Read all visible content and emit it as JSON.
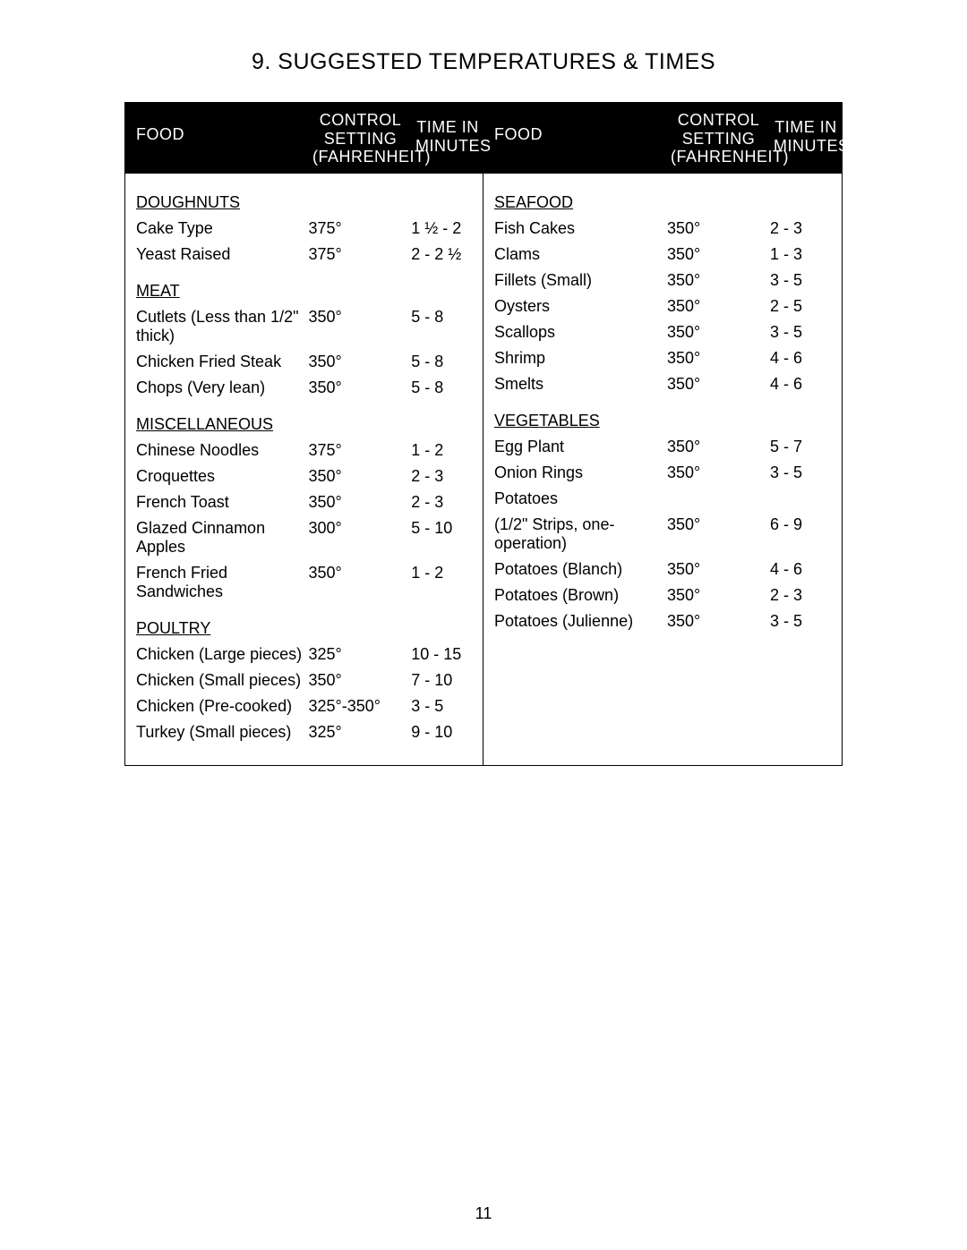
{
  "title": "9. SUGGESTED TEMPERATURES & TIMES",
  "page_number": "11",
  "headers": {
    "food": "FOOD",
    "temp_l1": "CONTROL",
    "temp_l2": "SETTING",
    "temp_l3": "(FAHRENHEIT)",
    "time_l1": "TIME IN",
    "time_l2": "MINUTES"
  },
  "left": [
    {
      "heading": "DOUGHNUTS",
      "rows": [
        {
          "food": "Cake Type",
          "temp": "375°",
          "time": "1 ½ - 2"
        },
        {
          "food": "Yeast Raised",
          "temp": "375°",
          "time": "2 - 2 ½"
        }
      ]
    },
    {
      "heading": "MEAT",
      "rows": [
        {
          "food": "Cutlets (Less than 1/2\" thick)",
          "temp": "350°",
          "time": "5 - 8"
        },
        {
          "food": "Chicken Fried Steak",
          "temp": "350°",
          "time": "5 - 8"
        },
        {
          "food": "Chops (Very lean)",
          "temp": "350°",
          "time": "5 - 8"
        }
      ]
    },
    {
      "heading": "MISCELLANEOUS",
      "rows": [
        {
          "food": "Chinese Noodles",
          "temp": "375°",
          "time": "1 - 2"
        },
        {
          "food": "Croquettes",
          "temp": "350°",
          "time": "2 - 3"
        },
        {
          "food": "French Toast",
          "temp": "350°",
          "time": "2 - 3"
        },
        {
          "food": "Glazed Cinnamon Apples",
          "temp": "300°",
          "time": "5 - 10"
        },
        {
          "food": "French Fried Sandwiches",
          "temp": "350°",
          "time": "1 - 2"
        }
      ]
    },
    {
      "heading": "POULTRY",
      "rows": [
        {
          "food": "Chicken (Large pieces)",
          "temp": "325°",
          "time": "10 - 15"
        },
        {
          "food": "Chicken (Small pieces)",
          "temp": "350°",
          "time": "7 - 10"
        },
        {
          "food": "Chicken (Pre-cooked)",
          "temp": "325°-350°",
          "time": "3 - 5"
        },
        {
          "food": "Turkey (Small pieces)",
          "temp": "325°",
          "time": "9 - 10"
        }
      ]
    }
  ],
  "right": [
    {
      "heading": "SEAFOOD",
      "rows": [
        {
          "food": "Fish Cakes",
          "temp": "350°",
          "time": "2 - 3"
        },
        {
          "food": "Clams",
          "temp": "350°",
          "time": "1 - 3"
        },
        {
          "food": "Fillets (Small)",
          "temp": "350°",
          "time": "3 - 5"
        },
        {
          "food": "Oysters",
          "temp": "350°",
          "time": "2 - 5"
        },
        {
          "food": "Scallops",
          "temp": "350°",
          "time": "3 - 5"
        },
        {
          "food": "Shrimp",
          "temp": "350°",
          "time": "4 - 6"
        },
        {
          "food": "Smelts",
          "temp": "350°",
          "time": "4 - 6"
        }
      ]
    },
    {
      "heading": "VEGETABLES",
      "rows": [
        {
          "food": "Egg Plant",
          "temp": "350°",
          "time": "5 - 7"
        },
        {
          "food": "Onion Rings",
          "temp": "350°",
          "time": "3 - 5"
        },
        {
          "food": "Potatoes",
          "temp": "",
          "time": ""
        },
        {
          "food": "(1/2\" Strips, one-operation)",
          "temp": "350°",
          "time": "6 - 9"
        },
        {
          "food": "Potatoes (Blanch)",
          "temp": "350°",
          "time": "4 - 6"
        },
        {
          "food": "Potatoes (Brown)",
          "temp": "350°",
          "time": "2 - 3"
        },
        {
          "food": "Potatoes (Julienne)",
          "temp": "350°",
          "time": "3 - 5"
        }
      ]
    }
  ]
}
